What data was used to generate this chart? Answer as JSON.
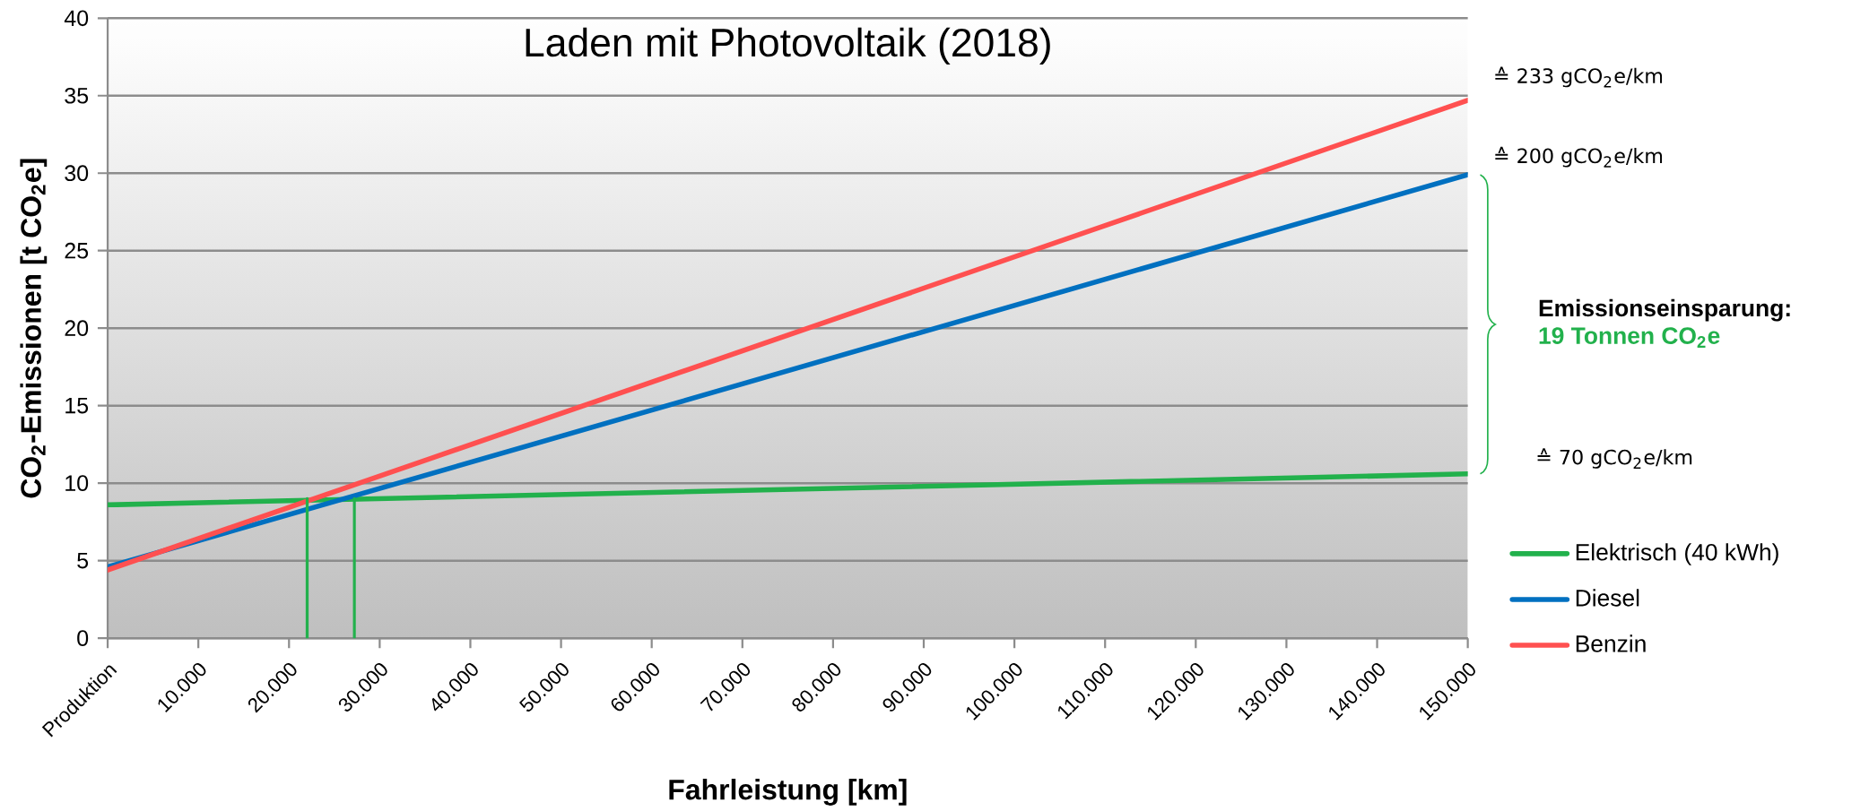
{
  "chart_data": {
    "type": "line",
    "title": "Laden mit Photovoltaik (2018)",
    "xlabel": "Fahrleistung [km]",
    "ylabel": "CO$_{2}$-Emissionen [t CO$_{2}$e]",
    "xlim": [
      0,
      150000
    ],
    "ylim": [
      0,
      40
    ],
    "xticks": [
      {
        "value": 0,
        "label": "Produktion"
      },
      {
        "value": 10000,
        "label": "10.000"
      },
      {
        "value": 20000,
        "label": "20.000"
      },
      {
        "value": 30000,
        "label": "30.000"
      },
      {
        "value": 40000,
        "label": "40.000"
      },
      {
        "value": 50000,
        "label": "50.000"
      },
      {
        "value": 60000,
        "label": "60.000"
      },
      {
        "value": 70000,
        "label": "70.000"
      },
      {
        "value": 80000,
        "label": "80.000"
      },
      {
        "value": 90000,
        "label": "90.000"
      },
      {
        "value": 100000,
        "label": "100.000"
      },
      {
        "value": 110000,
        "label": "110.000"
      },
      {
        "value": 120000,
        "label": "120.000"
      },
      {
        "value": 130000,
        "label": "130.000"
      },
      {
        "value": 140000,
        "label": "140.000"
      },
      {
        "value": 150000,
        "label": "150.000"
      }
    ],
    "yticks": [
      0,
      5,
      10,
      15,
      20,
      25,
      30,
      35,
      40
    ],
    "grid": "y",
    "legend": "right",
    "marker": "none",
    "line_style": "solid",
    "series": [
      {
        "name": "Elektrisch (40 kWh)",
        "color": "#22b14c",
        "x": [
          0,
          150000
        ],
        "values": [
          8.6,
          10.6
        ]
      },
      {
        "name": "Diesel",
        "color": "#0070c0",
        "x": [
          0,
          150000
        ],
        "values": [
          4.6,
          29.9
        ]
      },
      {
        "name": "Benzin",
        "color": "#ff5050",
        "x": [
          0,
          150000
        ],
        "values": [
          4.4,
          34.7
        ]
      },
      {
        "color": "#22b14c",
        "x": [
          22000,
          22000
        ],
        "values": [
          0,
          9
        ]
      },
      {
        "color": "#22b14c",
        "x": [
          27200,
          27200
        ],
        "values": [
          0,
          9
        ]
      }
    ],
    "annotations": [
      "≙ 233 gCO$_{2}$e/km",
      "≙ 200 gCO$_{2}$e/km",
      "≙ 70 gCO$_{2}$e/km",
      "**Emissionseinsparung**:",
      "19 Tonnen CO$_{2}$e"
    ]
  }
}
